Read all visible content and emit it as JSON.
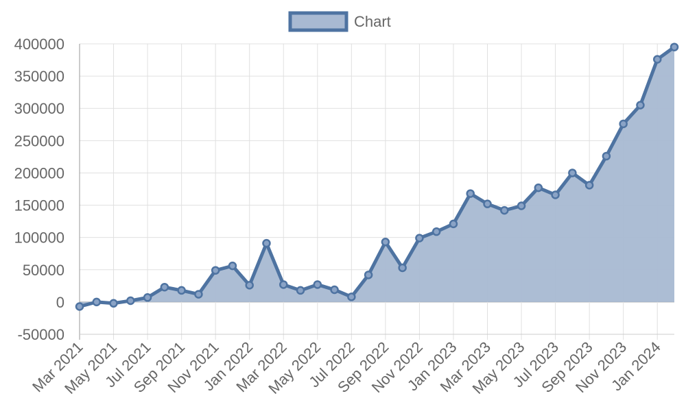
{
  "chart_data": {
    "type": "area",
    "legend": {
      "label": "Chart",
      "position": "top"
    },
    "x": [
      "2021-03",
      "2021-04",
      "2021-05",
      "2021-06",
      "2021-07",
      "2021-08",
      "2021-09",
      "2021-10",
      "2021-11",
      "2021-12",
      "2022-01",
      "2022-02",
      "2022-03",
      "2022-04",
      "2022-05",
      "2022-06",
      "2022-07",
      "2022-08",
      "2022-09",
      "2022-10",
      "2022-11",
      "2022-12",
      "2023-01",
      "2023-02",
      "2023-03",
      "2023-04",
      "2023-05",
      "2023-06",
      "2023-07",
      "2023-08",
      "2023-09",
      "2023-10",
      "2023-11",
      "2023-12",
      "2024-01",
      "2024-02"
    ],
    "series": [
      {
        "name": "Chart",
        "values": [
          -7000,
          0,
          -2000,
          2000,
          7000,
          23000,
          18000,
          12000,
          49000,
          56000,
          26000,
          91000,
          27000,
          18000,
          27000,
          19000,
          8000,
          42000,
          93000,
          53000,
          99000,
          109000,
          121000,
          168000,
          152000,
          142000,
          149000,
          177000,
          166000,
          200000,
          181000,
          226000,
          276000,
          305000,
          376000,
          395000
        ]
      }
    ],
    "ylim": [
      -50000,
      400000
    ],
    "yticks": [
      400000,
      350000,
      300000,
      250000,
      200000,
      150000,
      100000,
      50000,
      0,
      -50000
    ],
    "xticks": [
      {
        "x": "2021-03",
        "label": "Mar 2021"
      },
      {
        "x": "2021-05",
        "label": "May 2021"
      },
      {
        "x": "2021-07",
        "label": "Jul 2021"
      },
      {
        "x": "2021-09",
        "label": "Sep 2021"
      },
      {
        "x": "2021-11",
        "label": "Nov 2021"
      },
      {
        "x": "2022-01",
        "label": "Jan 2022"
      },
      {
        "x": "2022-03",
        "label": "Mar 2022"
      },
      {
        "x": "2022-05",
        "label": "May 2022"
      },
      {
        "x": "2022-07",
        "label": "Jul 2022"
      },
      {
        "x": "2022-09",
        "label": "Sep 2022"
      },
      {
        "x": "2022-11",
        "label": "Nov 2022"
      },
      {
        "x": "2023-01",
        "label": "Jan 2023"
      },
      {
        "x": "2023-03",
        "label": "Mar 2023"
      },
      {
        "x": "2023-05",
        "label": "May 2023"
      },
      {
        "x": "2023-07",
        "label": "Jul 2023"
      },
      {
        "x": "2023-09",
        "label": "Sep 2023"
      },
      {
        "x": "2023-11",
        "label": "Nov 2023"
      },
      {
        "x": "2024-01",
        "label": "Jan 2024"
      }
    ],
    "grid": true,
    "colors": {
      "line": "#4e73a1",
      "fill": "#a8b9d2",
      "grid": "#e0e0e0",
      "zero_line": "#a0a0a0",
      "text": "#666666"
    }
  }
}
